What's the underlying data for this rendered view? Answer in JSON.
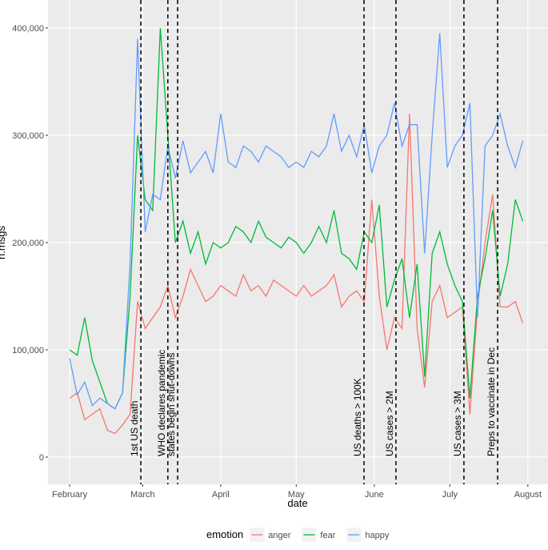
{
  "chart_data": {
    "type": "line",
    "x_label": "date",
    "y_label": "n.msgs",
    "legend_title": "emotion",
    "x": [
      0,
      3,
      6,
      9,
      12,
      15,
      18,
      21,
      24,
      27,
      30,
      33,
      36,
      39,
      42,
      45,
      48,
      51,
      54,
      57,
      60,
      63,
      66,
      69,
      72,
      75,
      78,
      81,
      84,
      87,
      90,
      93,
      96,
      99,
      102,
      105,
      108,
      111,
      114,
      117,
      120,
      123,
      126,
      129,
      132,
      135,
      138,
      141,
      144,
      147,
      150,
      153,
      156,
      159,
      162,
      165,
      168,
      171,
      174,
      177,
      180
    ],
    "series": [
      {
        "name": "anger",
        "color": "#F8766D",
        "values": [
          55000,
          60000,
          35000,
          40000,
          45000,
          25000,
          22000,
          30000,
          40000,
          145000,
          120000,
          130000,
          140000,
          160000,
          130000,
          150000,
          175000,
          160000,
          145000,
          150000,
          160000,
          155000,
          150000,
          170000,
          155000,
          160000,
          150000,
          165000,
          160000,
          155000,
          150000,
          160000,
          150000,
          155000,
          160000,
          170000,
          140000,
          150000,
          155000,
          145000,
          240000,
          150000,
          100000,
          130000,
          120000,
          320000,
          120000,
          65000,
          145000,
          160000,
          130000,
          135000,
          140000,
          40000,
          140000,
          200000,
          245000,
          140000,
          140000,
          145000,
          125000
        ]
      },
      {
        "name": "fear",
        "color": "#00BA38",
        "values": [
          100000,
          95000,
          130000,
          90000,
          70000,
          50000,
          45000,
          60000,
          150000,
          300000,
          240000,
          230000,
          400000,
          300000,
          200000,
          220000,
          190000,
          210000,
          180000,
          200000,
          195000,
          200000,
          215000,
          210000,
          200000,
          220000,
          205000,
          200000,
          195000,
          205000,
          200000,
          190000,
          200000,
          215000,
          200000,
          230000,
          190000,
          185000,
          175000,
          210000,
          200000,
          235000,
          140000,
          165000,
          185000,
          130000,
          180000,
          75000,
          190000,
          210000,
          180000,
          160000,
          145000,
          55000,
          150000,
          185000,
          230000,
          150000,
          180000,
          240000,
          220000
        ]
      },
      {
        "name": "happy",
        "color": "#619CFF",
        "values": [
          92000,
          58000,
          70000,
          48000,
          55000,
          50000,
          45000,
          60000,
          180000,
          390000,
          210000,
          245000,
          240000,
          290000,
          260000,
          295000,
          265000,
          275000,
          285000,
          265000,
          320000,
          275000,
          270000,
          290000,
          285000,
          275000,
          290000,
          285000,
          280000,
          270000,
          275000,
          270000,
          285000,
          280000,
          290000,
          320000,
          285000,
          300000,
          280000,
          310000,
          265000,
          290000,
          300000,
          330000,
          290000,
          310000,
          310000,
          190000,
          300000,
          395000,
          270000,
          290000,
          300000,
          330000,
          130000,
          290000,
          300000,
          320000,
          290000,
          270000,
          295000
        ]
      }
    ],
    "xlim": [
      -8.6,
      190
    ],
    "xticks": [
      {
        "value": 0,
        "label": "February"
      },
      {
        "value": 29,
        "label": "March"
      },
      {
        "value": 60,
        "label": "April"
      },
      {
        "value": 90,
        "label": "May"
      },
      {
        "value": 121,
        "label": "June"
      },
      {
        "value": 151,
        "label": "July"
      },
      {
        "value": 182,
        "label": "August"
      }
    ],
    "ylim": [
      -25400,
      426100
    ],
    "yticks": [
      0,
      {
        "value": 100000,
        "label": "100,000"
      },
      {
        "value": 200000,
        "label": "200,000"
      },
      {
        "value": 300000,
        "label": "300,000"
      },
      {
        "value": 400000,
        "label": "400,000"
      }
    ],
    "annotations": [
      {
        "x": 28.3,
        "label": "1st US death"
      },
      {
        "x": 39,
        "label": "WHO declares pandemic"
      },
      {
        "x": 42.9,
        "label": "states begin shut-downs"
      },
      {
        "x": 116.9,
        "label": "US deaths > 100K"
      },
      {
        "x": 129.6,
        "label": "US cases > 2M"
      },
      {
        "x": 156.6,
        "label": "US cases > 3M"
      },
      {
        "x": 170,
        "label": "Preps to vaccinate in Dec"
      }
    ],
    "grid": true,
    "legend": "bottom"
  }
}
